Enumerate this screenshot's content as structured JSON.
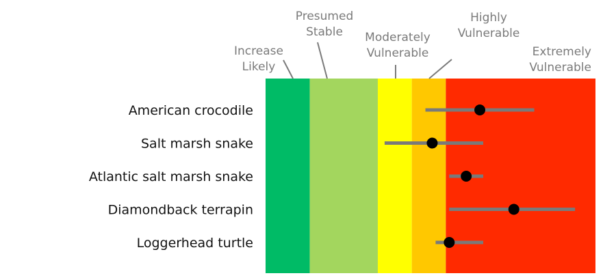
{
  "chart_data": {
    "type": "scatter",
    "title": "",
    "xlabel": "",
    "ylabel": "",
    "xlim": [
      0,
      9.7
    ],
    "zones": [
      {
        "name": "Increase Likely",
        "lines": [
          "Increase",
          "Likely"
        ],
        "from": 0,
        "to": 1.3,
        "color": "#00bb66"
      },
      {
        "name": "Presumed Stable",
        "lines": [
          "Presumed",
          "Stable"
        ],
        "from": 1.3,
        "to": 3.3,
        "color": "#a3d65e"
      },
      {
        "name": "Moderately Vulnerable",
        "lines": [
          "Moderately",
          "Vulnerable"
        ],
        "from": 3.3,
        "to": 4.3,
        "color": "#ffff00"
      },
      {
        "name": "Highly Vulnerable",
        "lines": [
          "Highly",
          "Vulnerable"
        ],
        "from": 4.3,
        "to": 5.3,
        "color": "#ffc800"
      },
      {
        "name": "Extremely Vulnerable",
        "lines": [
          "Extremely",
          "Vulnerable"
        ],
        "from": 5.3,
        "to": 9.7,
        "color": "#ff2a00"
      }
    ],
    "categories": [
      "American crocodile",
      "Salt marsh snake",
      "Atlantic salt marsh snake",
      "Diamondback terrapin",
      "Loggerhead turtle"
    ],
    "series": [
      {
        "estimate": [
          6.3,
          4.9,
          5.9,
          7.3,
          5.4
        ],
        "low": [
          4.7,
          3.5,
          5.4,
          5.4,
          5.0
        ],
        "high": [
          7.9,
          6.4,
          6.4,
          9.1,
          6.4
        ]
      }
    ],
    "colors": {
      "whisker": "#7a7a7a",
      "point": "#000000",
      "zone_label": "#7a7a7a",
      "category_label": "#111111"
    },
    "grid": false,
    "legend": "none"
  }
}
